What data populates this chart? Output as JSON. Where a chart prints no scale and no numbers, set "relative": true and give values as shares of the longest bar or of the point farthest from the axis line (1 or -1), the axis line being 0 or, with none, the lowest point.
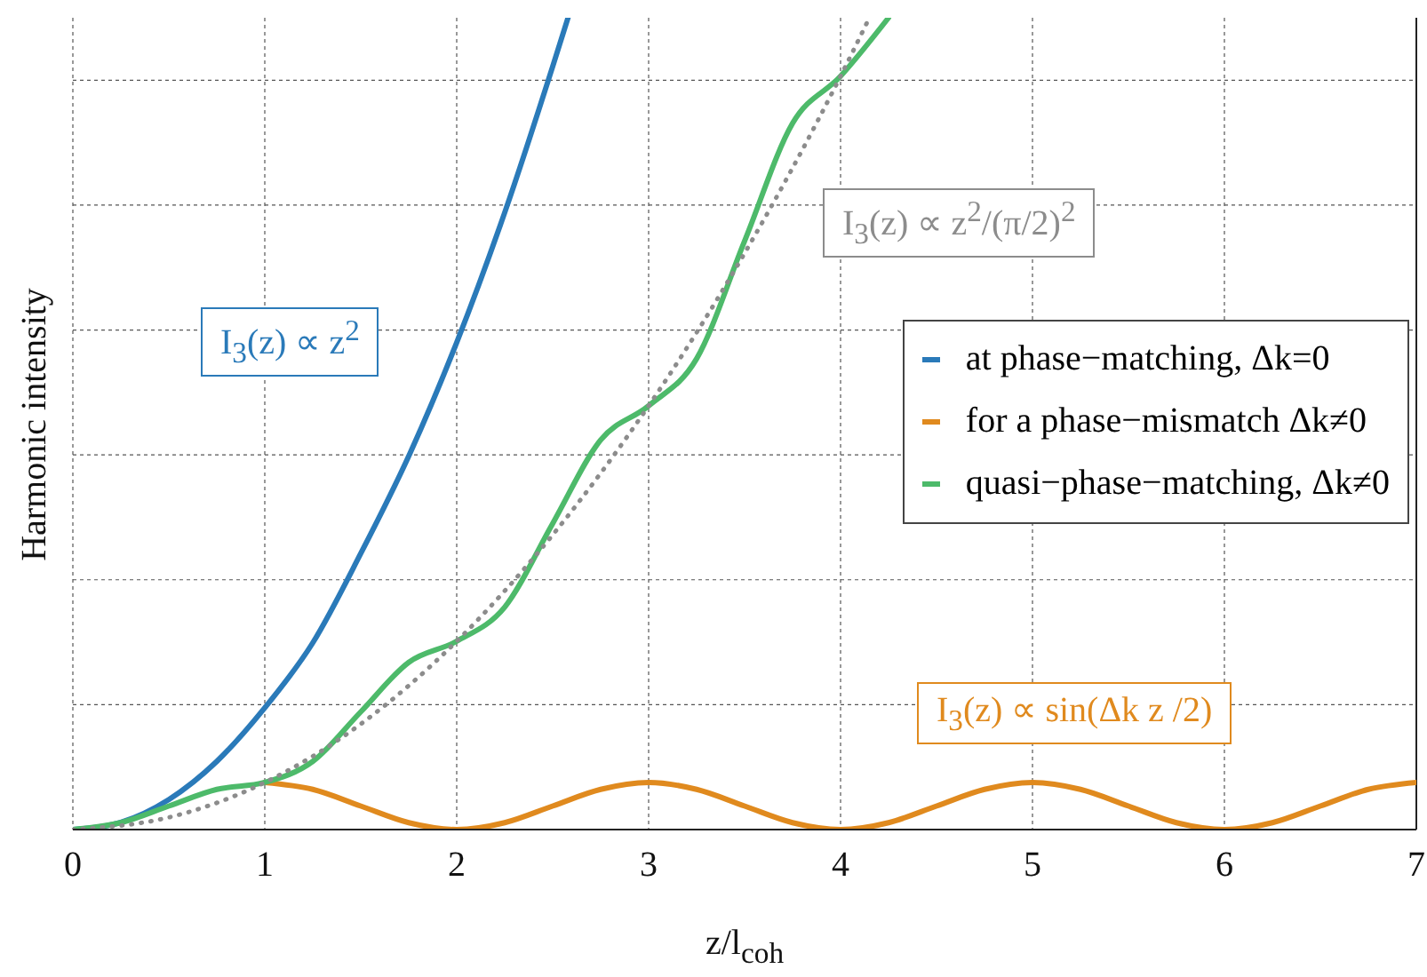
{
  "chart_data": {
    "type": "line",
    "relative": true,
    "xlabel": "z/l$_{coh}$",
    "ylabel": "Harmonic intensity",
    "xlim": [
      0,
      7
    ],
    "xticks": [
      0,
      1,
      2,
      3,
      4,
      5,
      6,
      7
    ],
    "grid": true,
    "legend": "right",
    "marker": "none",
    "annotations": [
      "I$_{3}$(z) ∝ z$^{2}$",
      "I$_{3}$(z) ∝ z$^{2}$/(π/2)$^{2}$",
      "I$_{3}$(z) ∝ sin(Δk z /2)"
    ],
    "series": [
      {
        "name": "at phase−matching, Δk=0",
        "color": "#2a7ab9",
        "x": [
          0,
          0.25,
          0.5,
          0.75,
          1,
          1.25,
          1.5,
          1.75,
          2,
          2.25,
          2.5,
          2.58
        ],
        "values": [
          0,
          0.009,
          0.037,
          0.084,
          0.15,
          0.23,
          0.34,
          0.46,
          0.6,
          0.76,
          0.94,
          1.0
        ]
      },
      {
        "name": "for a phase−mismatch Δk≠0",
        "color": "#e08a1e",
        "x": [
          1,
          1.25,
          1.5,
          1.75,
          2,
          2.25,
          2.5,
          2.75,
          3,
          3.25,
          3.5,
          3.75,
          4,
          4.25,
          4.5,
          4.75,
          5,
          5.25,
          5.5,
          5.75,
          6,
          6.25,
          6.5,
          6.75,
          7
        ],
        "values": [
          0.058,
          0.0495,
          0.029,
          0.0085,
          0,
          0.0085,
          0.029,
          0.0495,
          0.058,
          0.0495,
          0.029,
          0.0085,
          0,
          0.0085,
          0.029,
          0.0495,
          0.058,
          0.0495,
          0.029,
          0.0085,
          0,
          0.0085,
          0.029,
          0.0495,
          0.058
        ]
      },
      {
        "name": "quasi−phase−matching, Δk≠0",
        "color": "#4dba6a",
        "x": [
          0,
          0.25,
          0.5,
          0.75,
          1,
          1.25,
          1.5,
          1.75,
          2,
          2.25,
          2.5,
          2.75,
          3,
          3.25,
          3.5,
          3.75,
          4,
          4.25
        ],
        "values": [
          0,
          0.0085,
          0.029,
          0.0495,
          0.058,
          0.084,
          0.145,
          0.206,
          0.232,
          0.274,
          0.377,
          0.48,
          0.522,
          0.58,
          0.725,
          0.87,
          0.928,
          1.0
        ]
      },
      {
        "color": "#8c8c8c",
        "line_style": "dotted",
        "x": [
          0,
          0.5,
          1,
          1.5,
          2,
          2.5,
          3,
          3.5,
          4,
          4.15
        ],
        "values": [
          0,
          0.015,
          0.058,
          0.13,
          0.232,
          0.363,
          0.522,
          0.71,
          0.928,
          1.0
        ]
      }
    ]
  }
}
